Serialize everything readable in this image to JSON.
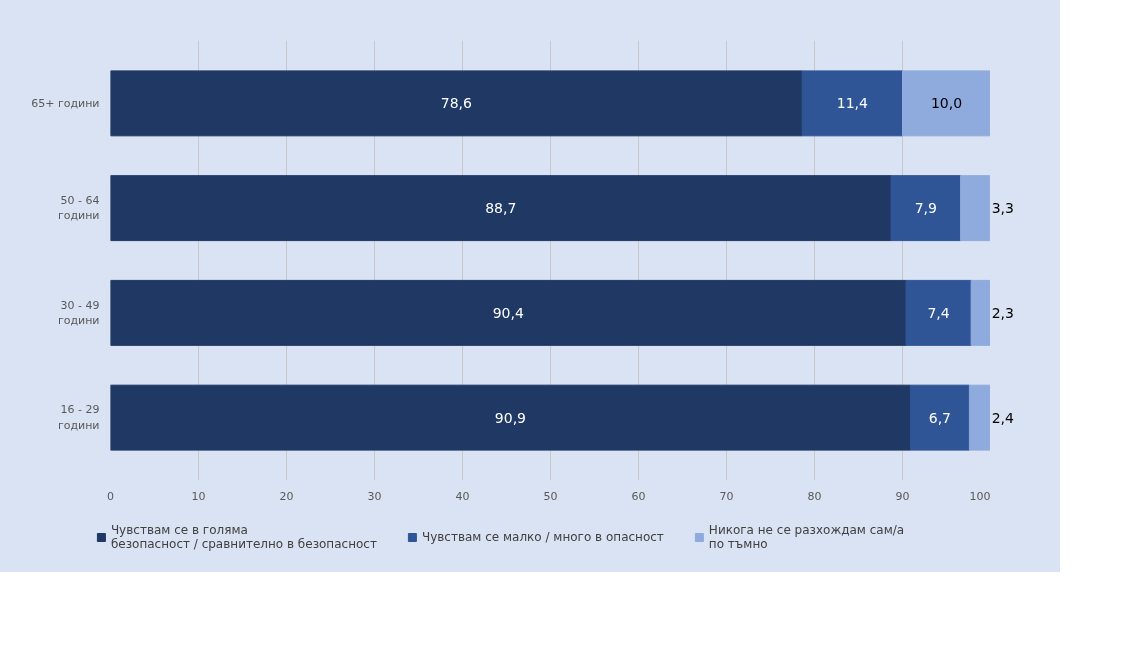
{
  "chart_data": {
    "type": "bar",
    "orientation": "horizontal",
    "stacked": true,
    "categories": [
      "65+ години",
      "50 - 64\nгодини",
      "30 - 49\nгодини",
      "16 - 29\nгодини"
    ],
    "series": [
      {
        "name": "Чувствам се в голяма\nбезопасност / сравнително в безопасност",
        "color": "#203864",
        "values": [
          78.6,
          88.7,
          90.4,
          90.9
        ],
        "value_labels": [
          "78,6",
          "88,7",
          "90,4",
          "90,9"
        ]
      },
      {
        "name": "Чувствам се малко / много в опасност",
        "color": "#2f5597",
        "values": [
          11.4,
          7.9,
          7.4,
          6.7
        ],
        "value_labels": [
          "11,4",
          "7,9",
          "7,4",
          "6,7"
        ]
      },
      {
        "name": "Никога не се разхождам сам/а\nпо тъмно",
        "color": "#8faadc",
        "values": [
          10.0,
          3.3,
          2.3,
          2.4
        ],
        "value_labels": [
          "10,0",
          "3,3",
          "2,3",
          "2,4"
        ]
      }
    ],
    "xlim": [
      0,
      100
    ],
    "xticks": [
      0,
      10,
      20,
      30,
      40,
      50,
      60,
      70,
      80,
      90,
      100
    ],
    "grid": "x",
    "legend": "bottom"
  }
}
